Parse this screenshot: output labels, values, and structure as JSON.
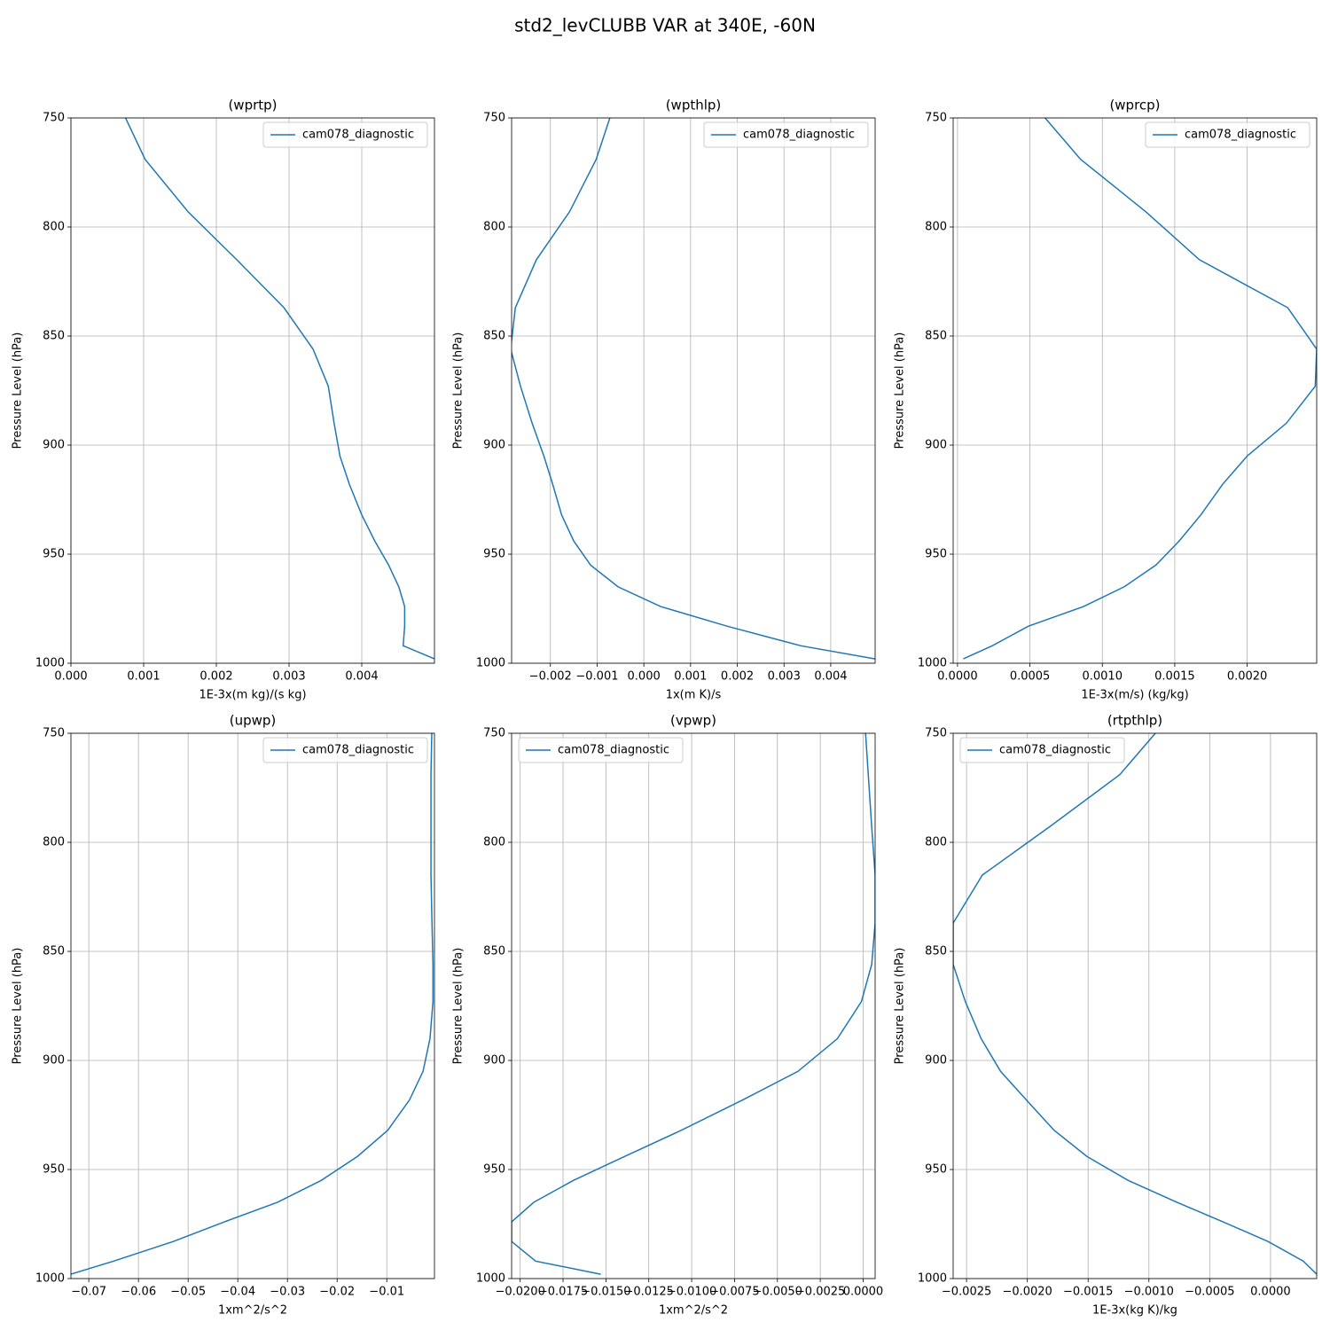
{
  "title": "std2_levCLUBB VAR at 340E, -60N",
  "chart_data": [
    {
      "type": "line",
      "title": "(wprtp)",
      "x_label": "1E-3x(m kg)/(s kg)",
      "y_label": "Pressure Level (hPa)",
      "y": [
        745,
        769,
        793,
        815,
        837,
        856,
        873,
        890,
        905,
        918,
        932,
        944,
        955,
        965,
        974,
        983,
        992,
        998
      ],
      "series": [
        {
          "name": "cam078_diagnostic",
          "color": "#1f77b4",
          "values": [
            0.00068,
            0.00102,
            0.00161,
            0.00228,
            0.00293,
            0.00333,
            0.00354,
            0.00362,
            0.0037,
            0.00383,
            0.004,
            0.00418,
            0.00437,
            0.00451,
            0.00459,
            0.00459,
            0.00457,
            0.005
          ]
        }
      ],
      "xlim": [
        0,
        0.005
      ],
      "ylim": [
        1000,
        750
      ],
      "xticks": [
        {
          "value": 0,
          "label": "0.000"
        },
        {
          "value": 0.001,
          "label": "0.001"
        },
        {
          "value": 0.002,
          "label": "0.002"
        },
        {
          "value": 0.003,
          "label": "0.003"
        },
        {
          "value": 0.004,
          "label": "0.004"
        }
      ],
      "yticks": [
        750,
        800,
        850,
        900,
        950,
        1000
      ],
      "grid": true,
      "legend": "upper-right"
    },
    {
      "type": "line",
      "title": "(wpthlp)",
      "x_label": "1x(m K)/s",
      "y_label": "Pressure Level (hPa)",
      "y": [
        745,
        769,
        793,
        815,
        837,
        856,
        873,
        890,
        905,
        918,
        932,
        944,
        955,
        965,
        974,
        983,
        992,
        998
      ],
      "series": [
        {
          "name": "cam078_diagnostic",
          "color": "#1f77b4",
          "values": [
            -0.00065,
            -0.00102,
            -0.00159,
            -0.0023,
            -0.00275,
            -0.00285,
            -0.00264,
            -0.00239,
            -0.00214,
            -0.00195,
            -0.00176,
            -0.0015,
            -0.00114,
            -0.00055,
            0.00036,
            0.00178,
            0.00336,
            0.00495
          ]
        }
      ],
      "xlim": [
        -0.00283,
        0.00495
      ],
      "ylim": [
        1000,
        750
      ],
      "xticks": [
        {
          "value": -0.002,
          "label": "−0.002"
        },
        {
          "value": -0.001,
          "label": "−0.001"
        },
        {
          "value": 0,
          "label": "0.000"
        },
        {
          "value": 0.001,
          "label": "0.001"
        },
        {
          "value": 0.002,
          "label": "0.002"
        },
        {
          "value": 0.003,
          "label": "0.003"
        },
        {
          "value": 0.004,
          "label": "0.004"
        }
      ],
      "yticks": [
        750,
        800,
        850,
        900,
        950,
        1000
      ],
      "grid": true,
      "legend": "upper-right"
    },
    {
      "type": "line",
      "title": "(wprcp)",
      "x_label": "1E-3x(m/s) (kg/kg)",
      "y_label": "Pressure Level (hPa)",
      "y": [
        745,
        769,
        793,
        815,
        837,
        856,
        873,
        890,
        905,
        918,
        932,
        944,
        955,
        965,
        974,
        983,
        992,
        998
      ],
      "series": [
        {
          "name": "cam078_diagnostic",
          "color": "#1f77b4",
          "values": [
            0.00054,
            0.00085,
            0.0013,
            0.00167,
            0.00228,
            0.00248,
            0.00247,
            0.00227,
            0.002,
            0.00183,
            0.00168,
            0.00153,
            0.00137,
            0.00115,
            0.00087,
            0.00049,
            0.00024,
            4e-05
          ]
        }
      ],
      "xlim": [
        -3e-05,
        0.00248
      ],
      "ylim": [
        1000,
        750
      ],
      "xticks": [
        {
          "value": 0,
          "label": "0.0000"
        },
        {
          "value": 0.0005,
          "label": "0.0005"
        },
        {
          "value": 0.001,
          "label": "0.0010"
        },
        {
          "value": 0.0015,
          "label": "0.0015"
        },
        {
          "value": 0.002,
          "label": "0.0020"
        }
      ],
      "yticks": [
        750,
        800,
        850,
        900,
        950,
        1000
      ],
      "grid": true,
      "legend": "upper-right"
    },
    {
      "type": "line",
      "title": "(upwp)",
      "x_label": "1xm^2/s^2",
      "y_label": "Pressure Level (hPa)",
      "y": [
        745,
        769,
        793,
        815,
        837,
        856,
        873,
        890,
        905,
        918,
        932,
        944,
        955,
        965,
        974,
        983,
        992,
        998
      ],
      "series": [
        {
          "name": "cam078_diagnostic",
          "color": "#1f77b4",
          "values": [
            -0.0009,
            -0.0011,
            -0.0011,
            -0.0011,
            -0.0009,
            -0.0007,
            -0.0007,
            -0.0013,
            -0.0027,
            -0.0054,
            -0.0098,
            -0.0159,
            -0.0232,
            -0.032,
            -0.0427,
            -0.053,
            -0.065,
            -0.0736
          ]
        }
      ],
      "xlim": [
        -0.0736,
        -0.0004
      ],
      "ylim": [
        1000,
        750
      ],
      "xticks": [
        {
          "value": -0.07,
          "label": "−0.07"
        },
        {
          "value": -0.06,
          "label": "−0.06"
        },
        {
          "value": -0.05,
          "label": "−0.05"
        },
        {
          "value": -0.04,
          "label": "−0.04"
        },
        {
          "value": -0.03,
          "label": "−0.03"
        },
        {
          "value": -0.02,
          "label": "−0.02"
        },
        {
          "value": -0.01,
          "label": "−0.01"
        }
      ],
      "yticks": [
        750,
        800,
        850,
        900,
        950,
        1000
      ],
      "grid": true,
      "legend": "upper-right"
    },
    {
      "type": "line",
      "title": "(vpwp)",
      "x_label": "1xm^2/s^2",
      "y_label": "Pressure Level (hPa)",
      "y": [
        745,
        769,
        793,
        815,
        837,
        856,
        873,
        890,
        905,
        918,
        932,
        944,
        955,
        965,
        974,
        983,
        992,
        998
      ],
      "series": [
        {
          "name": "cam078_diagnostic",
          "color": "#1f77b4",
          "values": [
            0.0001,
            0.0003,
            0.0005,
            0.0007,
            0.0007,
            0.0005,
            -0.0001,
            -0.0015,
            -0.0038,
            -0.007,
            -0.0106,
            -0.0139,
            -0.0169,
            -0.0192,
            -0.0205,
            -0.0205,
            -0.0191,
            -0.0153
          ]
        }
      ],
      "xlim": [
        -0.0205,
        0.0007
      ],
      "ylim": [
        1000,
        750
      ],
      "xticks": [
        {
          "value": -0.02,
          "label": "−0.0200"
        },
        {
          "value": -0.0175,
          "label": "−0.0175"
        },
        {
          "value": -0.015,
          "label": "−0.0150"
        },
        {
          "value": -0.0125,
          "label": "−0.0125"
        },
        {
          "value": -0.01,
          "label": "−0.0100"
        },
        {
          "value": -0.0075,
          "label": "−0.0075"
        },
        {
          "value": -0.005,
          "label": "−0.0050"
        },
        {
          "value": -0.0025,
          "label": "−0.0025"
        },
        {
          "value": 0,
          "label": "0.0000"
        }
      ],
      "yticks": [
        750,
        800,
        850,
        900,
        950,
        1000
      ],
      "grid": true,
      "legend": "upper-left"
    },
    {
      "type": "line",
      "title": "(rtpthlp)",
      "x_label": "1E-3x(kg K)/kg",
      "y_label": "Pressure Level (hPa)",
      "y": [
        745,
        769,
        793,
        815,
        837,
        856,
        873,
        890,
        905,
        918,
        932,
        944,
        955,
        965,
        974,
        983,
        992,
        998
      ],
      "series": [
        {
          "name": "cam078_diagnostic",
          "color": "#1f77b4",
          "values": [
            -0.00087,
            -0.00124,
            -0.00182,
            -0.00237,
            -0.00261,
            -0.00261,
            -0.00251,
            -0.00238,
            -0.00222,
            -0.00201,
            -0.00178,
            -0.00151,
            -0.00117,
            -0.00077,
            -0.00039,
            -2e-05,
            0.00027,
            0.00038
          ]
        }
      ],
      "xlim": [
        -0.00261,
        0.00038
      ],
      "ylim": [
        1000,
        750
      ],
      "xticks": [
        {
          "value": -0.0025,
          "label": "−0.0025"
        },
        {
          "value": -0.002,
          "label": "−0.0020"
        },
        {
          "value": -0.0015,
          "label": "−0.0015"
        },
        {
          "value": -0.001,
          "label": "−0.0010"
        },
        {
          "value": -0.0005,
          "label": "−0.0005"
        },
        {
          "value": 0,
          "label": "0.0000"
        }
      ],
      "yticks": [
        750,
        800,
        850,
        900,
        950,
        1000
      ],
      "grid": true,
      "legend": "upper-left"
    }
  ]
}
